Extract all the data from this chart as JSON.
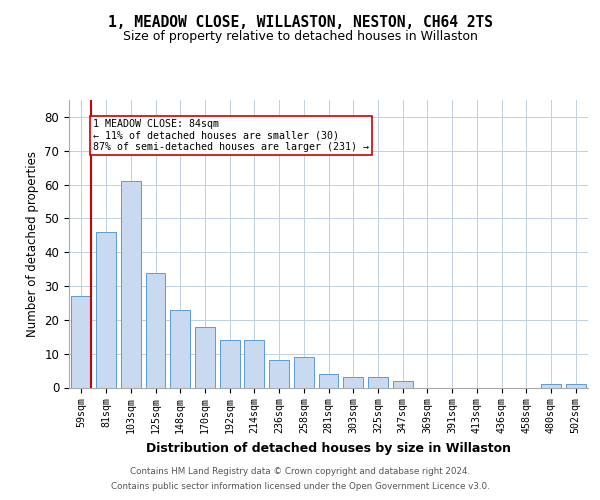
{
  "title": "1, MEADOW CLOSE, WILLASTON, NESTON, CH64 2TS",
  "subtitle": "Size of property relative to detached houses in Willaston",
  "xlabel": "Distribution of detached houses by size in Willaston",
  "ylabel": "Number of detached properties",
  "categories": [
    "59sqm",
    "81sqm",
    "103sqm",
    "125sqm",
    "148sqm",
    "170sqm",
    "192sqm",
    "214sqm",
    "236sqm",
    "258sqm",
    "281sqm",
    "303sqm",
    "325sqm",
    "347sqm",
    "369sqm",
    "391sqm",
    "413sqm",
    "436sqm",
    "458sqm",
    "480sqm",
    "502sqm"
  ],
  "values": [
    27,
    46,
    61,
    34,
    23,
    18,
    14,
    14,
    8,
    9,
    4,
    3,
    3,
    2,
    0,
    0,
    0,
    0,
    0,
    1,
    1
  ],
  "bar_color": "#c8d9f0",
  "bar_edgecolor": "#5b9bd5",
  "vline_color": "#cc0000",
  "annotation_text": "1 MEADOW CLOSE: 84sqm\n← 11% of detached houses are smaller (30)\n87% of semi-detached houses are larger (231) →",
  "annotation_box_edgecolor": "#cc0000",
  "annotation_box_facecolor": "#ffffff",
  "ylim": [
    0,
    85
  ],
  "yticks": [
    0,
    10,
    20,
    30,
    40,
    50,
    60,
    70,
    80
  ],
  "footer_line1": "Contains HM Land Registry data © Crown copyright and database right 2024.",
  "footer_line2": "Contains public sector information licensed under the Open Government Licence v3.0.",
  "background_color": "#ffffff",
  "grid_color": "#c0d0e0"
}
